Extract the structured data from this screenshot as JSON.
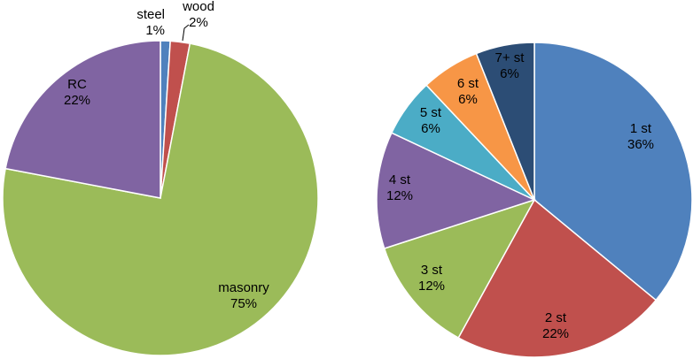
{
  "chart_data": [
    {
      "type": "pie",
      "title": "",
      "slices": [
        {
          "name": "steel",
          "value": 1,
          "label": "1%",
          "color": "#4F81BD"
        },
        {
          "name": "wood",
          "value": 2,
          "label": "2%",
          "color": "#C0504D"
        },
        {
          "name": "masonry",
          "value": 75,
          "label": "75%",
          "color": "#9BBB59"
        },
        {
          "name": "RC",
          "value": 22,
          "label": "22%",
          "color": "#8064A2"
        }
      ]
    },
    {
      "type": "pie",
      "title": "",
      "slices": [
        {
          "name": "1 st",
          "value": 36,
          "label": "36%",
          "color": "#4F81BD"
        },
        {
          "name": "2 st",
          "value": 22,
          "label": "22%",
          "color": "#C0504D"
        },
        {
          "name": "3 st",
          "value": 12,
          "label": "12%",
          "color": "#9BBB59"
        },
        {
          "name": "4 st",
          "value": 12,
          "label": "12%",
          "color": "#8064A2"
        },
        {
          "name": "5 st",
          "value": 6,
          "label": "6%",
          "color": "#4BACC6"
        },
        {
          "name": "6 st",
          "value": 6,
          "label": "6%",
          "color": "#F79646"
        },
        {
          "name": "7+ st",
          "value": 6,
          "label": "6%",
          "color": "#2C4D75"
        }
      ]
    }
  ]
}
